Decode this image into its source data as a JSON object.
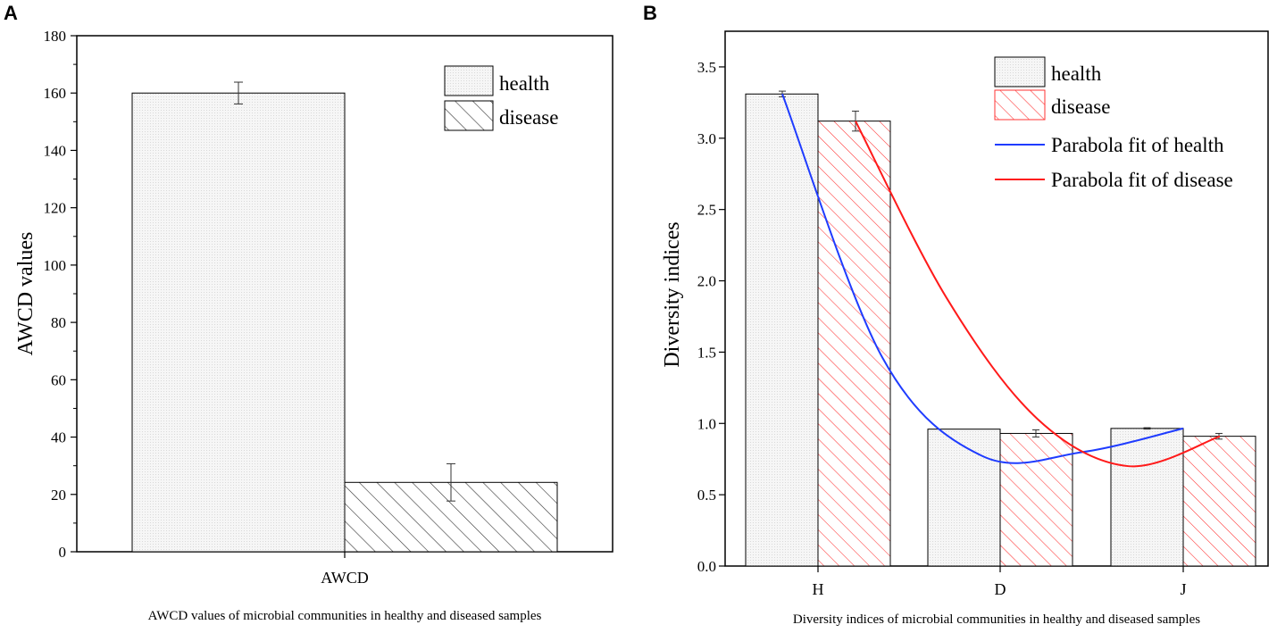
{
  "colors": {
    "health_fill": "#f2f2f2",
    "grid_dot": "#d9d9d9",
    "disease_hatch_a": "#333333",
    "disease_hatch_b": "#ff3333",
    "blue_fit": "#1f3cff",
    "red_fit": "#ff1a1a",
    "axis": "#000000"
  },
  "chart_data": [
    {
      "panel": "A",
      "type": "bar",
      "categories": [
        "AWCD"
      ],
      "series": [
        {
          "name": "health",
          "values": [
            160
          ],
          "errors": [
            3.8
          ]
        },
        {
          "name": "disease",
          "values": [
            24.2
          ],
          "errors": [
            6.5
          ]
        }
      ],
      "ylabel": "AWCD values",
      "xlabel": "AWCD values of microbial communities in healthy and diseased samples",
      "ylim": [
        0,
        180
      ],
      "yticks": [
        0,
        20,
        40,
        60,
        80,
        100,
        120,
        140,
        160,
        180
      ],
      "legend": [
        "health",
        "disease"
      ],
      "legend_position": "top-right",
      "grid": false
    },
    {
      "panel": "B",
      "type": "bar",
      "categories": [
        "H",
        "D",
        "J"
      ],
      "series": [
        {
          "name": "health",
          "values": [
            3.31,
            0.96,
            0.965
          ],
          "errors": [
            0.02,
            0.0,
            0.005
          ]
        },
        {
          "name": "disease",
          "values": [
            3.12,
            0.93,
            0.91
          ],
          "errors": [
            0.07,
            0.025,
            0.02
          ]
        }
      ],
      "fits": [
        {
          "name": "Parabola fit of health",
          "color": "blue",
          "x": [
            1,
            1.5,
            2,
            2.5,
            3
          ],
          "y": [
            3.31,
            1.46,
            0.77,
            0.8,
            0.965
          ]
        },
        {
          "name": "Parabola fit of disease",
          "color": "red",
          "x": [
            1,
            1.5,
            2,
            2.5,
            3
          ],
          "y": [
            3.12,
            1.88,
            1.03,
            0.7,
            0.91
          ]
        }
      ],
      "ylabel": "Diversity indices",
      "xlabel": "Diversity indices of microbial communities in healthy and diseased samples",
      "ylim": [
        0,
        3.75
      ],
      "yticks": [
        0.0,
        0.5,
        1.0,
        1.5,
        2.0,
        2.5,
        3.0,
        3.5
      ],
      "legend": [
        "health",
        "disease",
        "Parabola fit of health",
        "Parabola fit of disease"
      ],
      "legend_position": "top-right",
      "grid": false
    }
  ]
}
